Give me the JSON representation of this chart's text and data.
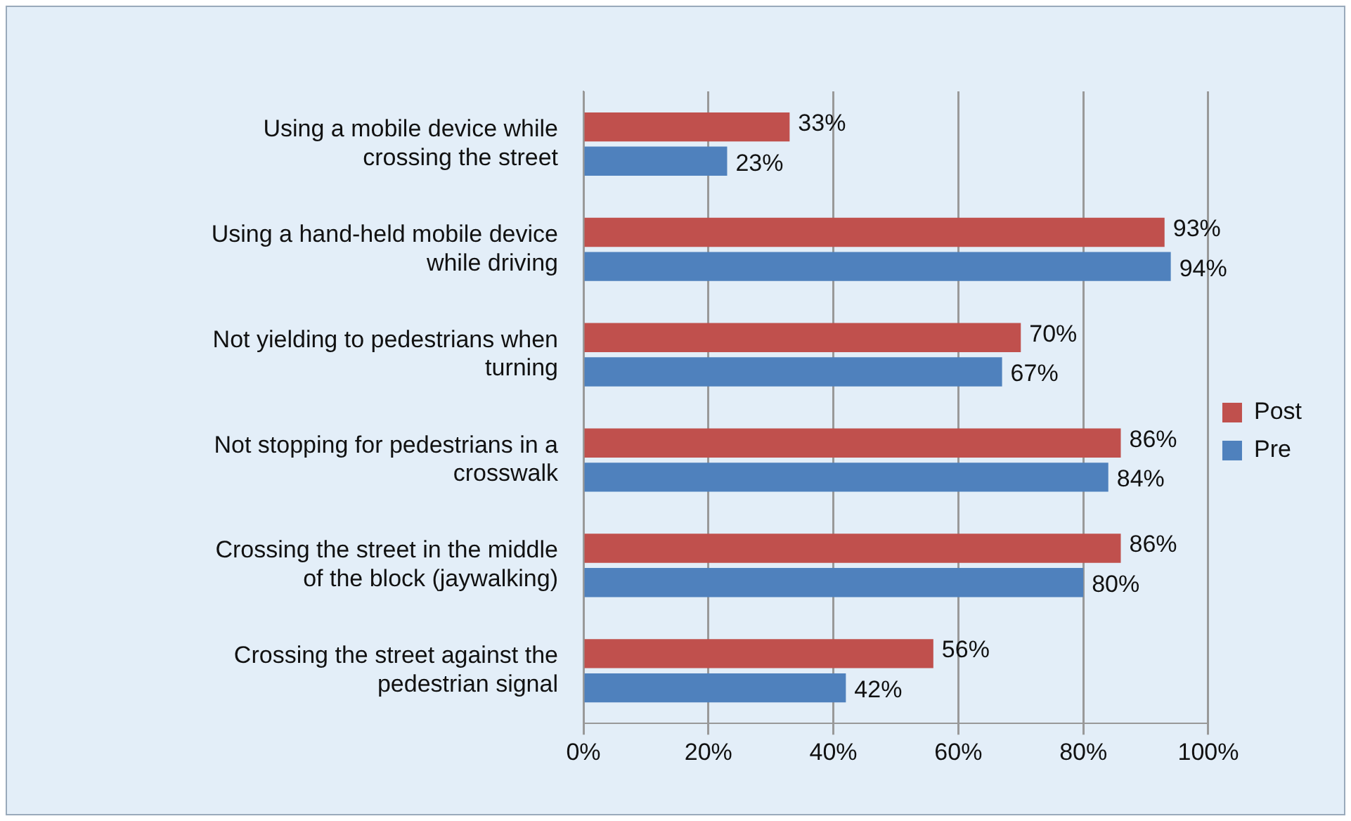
{
  "chart_data": {
    "type": "bar",
    "orientation": "horizontal",
    "categories": [
      "Using a mobile device while crossing the street",
      "Using a hand-held mobile device while driving",
      "Not yielding to pedestrians when turning",
      "Not stopping for pedestrians in a crosswalk",
      "Crossing the street in the middle of the block (jaywalking)",
      "Crossing the street against the pedestrian signal"
    ],
    "series": [
      {
        "name": "Post",
        "color": "#c0504d",
        "values": [
          33,
          93,
          70,
          86,
          86,
          56
        ],
        "value_labels": [
          "33%",
          "93%",
          "70%",
          "86%",
          "86%",
          "56%"
        ]
      },
      {
        "name": "Pre",
        "color": "#4f81bd",
        "values": [
          23,
          94,
          67,
          84,
          80,
          42
        ],
        "value_labels": [
          "23%",
          "94%",
          "67%",
          "84%",
          "80%",
          "42%"
        ]
      }
    ],
    "xlim": [
      0,
      100
    ],
    "xticks": [
      {
        "value": 0,
        "label": "0%"
      },
      {
        "value": 20,
        "label": "20%"
      },
      {
        "value": 40,
        "label": "40%"
      },
      {
        "value": 60,
        "label": "60%"
      },
      {
        "value": 80,
        "label": "80%"
      },
      {
        "value": 100,
        "label": "100%"
      }
    ],
    "grid": "x",
    "legend": "right"
  }
}
